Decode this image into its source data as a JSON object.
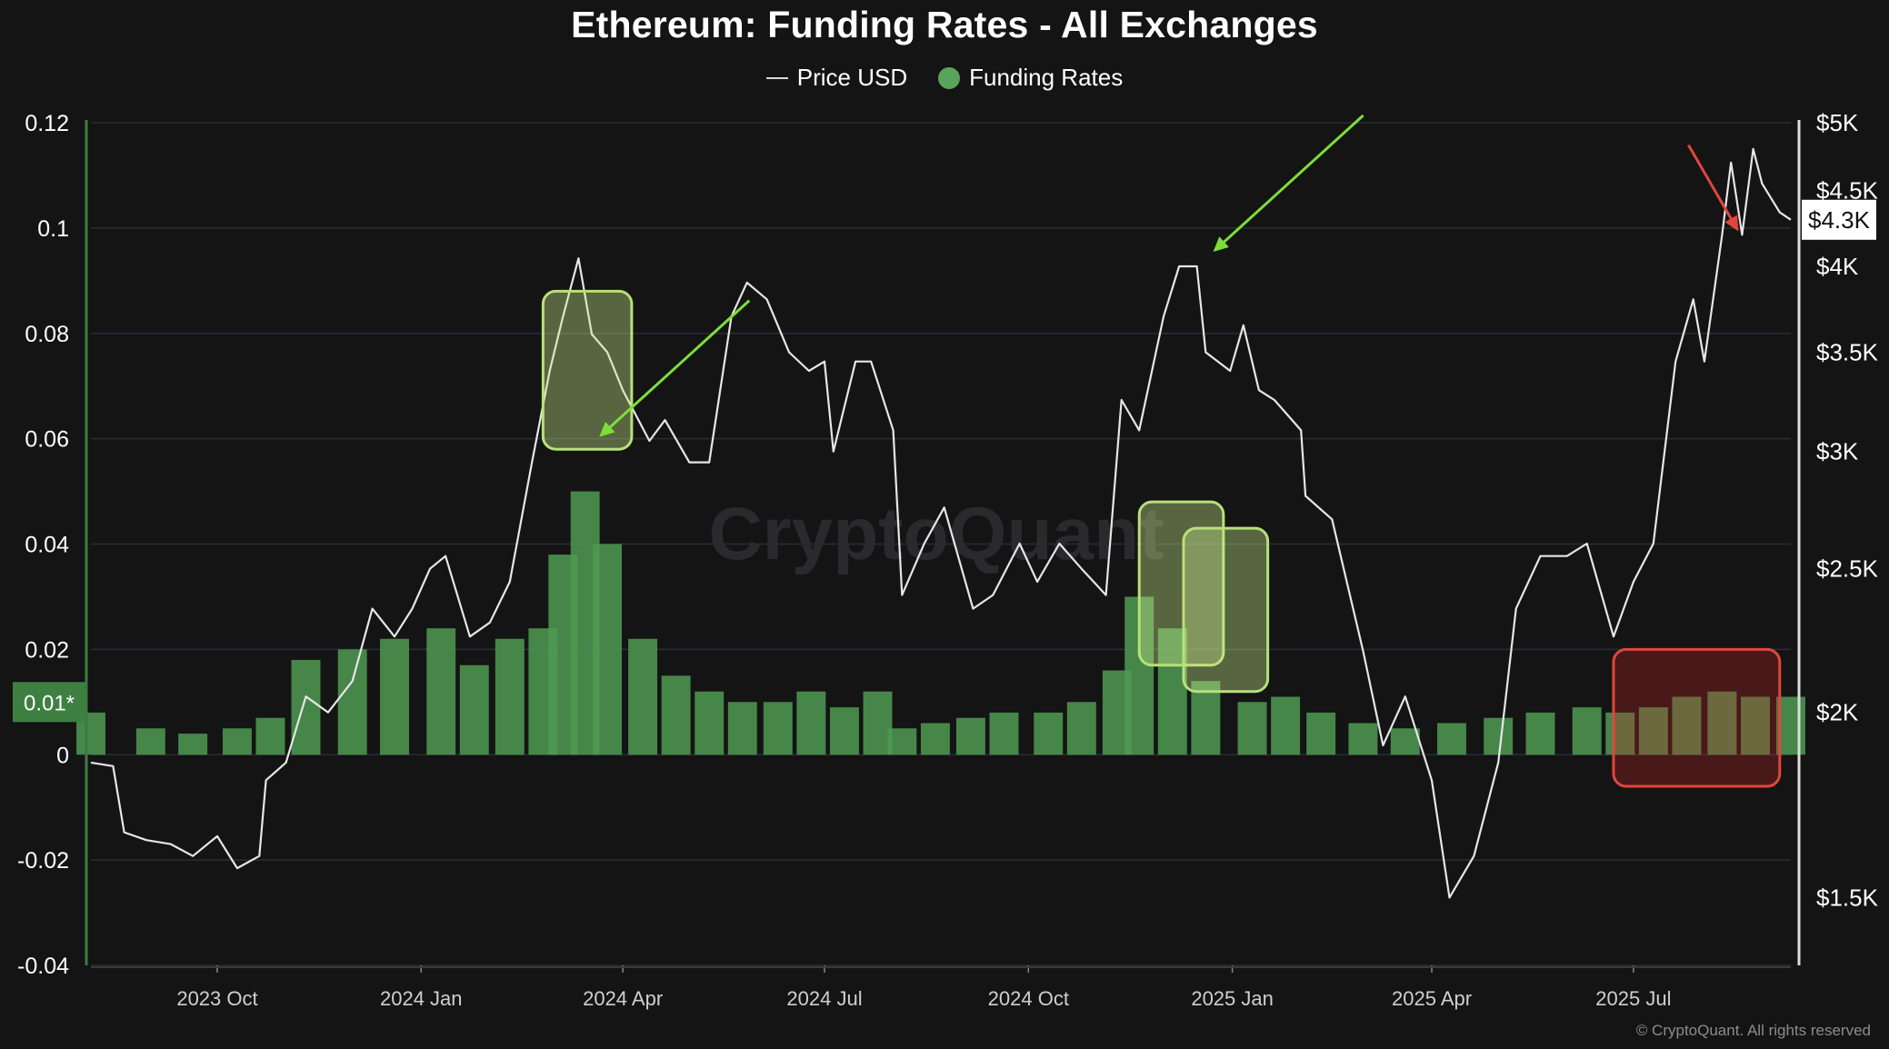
{
  "title": "Ethereum: Funding Rates - All Exchanges",
  "legend": {
    "price_label": "Price USD",
    "funding_label": "Funding Rates"
  },
  "watermark": "CryptoQuant",
  "credit": "© CryptoQuant. All rights reserved",
  "colors": {
    "background": "#141414",
    "price_line": "#e6e6e6",
    "funding_positive": "#4f9a52",
    "funding_negative": "#b3353c",
    "highlight_green": "#b8e07a",
    "highlight_red": "#e0463c",
    "arrow_green": "#7dde3a",
    "arrow_red": "#e0463c",
    "grid": "#2a2d38"
  },
  "chart_data": {
    "type": "bar+line",
    "title": "Ethereum: Funding Rates - All Exchanges",
    "x_ticks": [
      "2023 Oct",
      "2024 Jan",
      "2024 Apr",
      "2024 Jul",
      "2024 Oct",
      "2025 Jan",
      "2025 Apr",
      "2025 Jul"
    ],
    "x_range": [
      "2023-08-05",
      "2025-09-10"
    ],
    "left_axis": {
      "ticks": [
        "0.12",
        "0.1",
        "0.08",
        "0.06",
        "0.04",
        "0.02",
        "0",
        "-0.02",
        "-0.04"
      ],
      "ylim": [
        -0.04,
        0.12
      ]
    },
    "right_axis": {
      "ticks": [
        "$5K",
        "$4.5K",
        "$4K",
        "$3.5K",
        "$3K",
        "$2.5K",
        "$2K",
        "$1.5K"
      ],
      "scale": "log",
      "ylim": [
        1350,
        5000
      ]
    },
    "current_funding_label": "0.01*",
    "current_price_label": "$4.3K",
    "series": [
      {
        "name": "Price USD",
        "kind": "line",
        "dates": [
          "2023-08-05",
          "2023-08-15",
          "2023-08-20",
          "2023-08-30",
          "2023-09-10",
          "2023-09-20",
          "2023-10-01",
          "2023-10-10",
          "2023-10-20",
          "2023-10-23",
          "2023-11-01",
          "2023-11-10",
          "2023-11-20",
          "2023-12-01",
          "2023-12-10",
          "2023-12-20",
          "2023-12-28",
          "2024-01-05",
          "2024-01-12",
          "2024-01-23",
          "2024-02-01",
          "2024-02-10",
          "2024-02-20",
          "2024-02-28",
          "2024-03-05",
          "2024-03-12",
          "2024-03-18",
          "2024-03-25",
          "2024-04-01",
          "2024-04-13",
          "2024-04-20",
          "2024-05-01",
          "2024-05-10",
          "2024-05-20",
          "2024-05-27",
          "2024-06-05",
          "2024-06-15",
          "2024-06-24",
          "2024-07-01",
          "2024-07-05",
          "2024-07-15",
          "2024-07-22",
          "2024-08-01",
          "2024-08-05",
          "2024-08-15",
          "2024-08-24",
          "2024-09-06",
          "2024-09-15",
          "2024-09-27",
          "2024-10-05",
          "2024-10-15",
          "2024-10-25",
          "2024-11-05",
          "2024-11-12",
          "2024-11-20",
          "2024-12-01",
          "2024-12-08",
          "2024-12-16",
          "2024-12-20",
          "2024-12-31",
          "2025-01-06",
          "2025-01-13",
          "2025-01-20",
          "2025-02-01",
          "2025-02-03",
          "2025-02-15",
          "2025-03-01",
          "2025-03-10",
          "2025-03-20",
          "2025-04-01",
          "2025-04-09",
          "2025-04-20",
          "2025-05-01",
          "2025-05-09",
          "2025-05-20",
          "2025-06-01",
          "2025-06-10",
          "2025-06-22",
          "2025-07-01",
          "2025-07-10",
          "2025-07-20",
          "2025-07-28",
          "2025-08-02",
          "2025-08-10",
          "2025-08-14",
          "2025-08-19",
          "2025-08-24",
          "2025-08-28",
          "2025-09-05",
          "2025-09-10"
        ],
        "values": [
          1850,
          1840,
          1660,
          1640,
          1630,
          1600,
          1650,
          1570,
          1600,
          1800,
          1850,
          2050,
          2000,
          2100,
          2350,
          2250,
          2350,
          2500,
          2550,
          2250,
          2300,
          2450,
          2950,
          3400,
          3700,
          4050,
          3600,
          3500,
          3300,
          3050,
          3150,
          2950,
          2950,
          3700,
          3900,
          3800,
          3500,
          3400,
          3450,
          3000,
          3450,
          3450,
          3100,
          2400,
          2600,
          2750,
          2350,
          2400,
          2600,
          2450,
          2600,
          2500,
          2400,
          3250,
          3100,
          3700,
          4000,
          4000,
          3500,
          3400,
          3650,
          3300,
          3250,
          3100,
          2800,
          2700,
          2200,
          1900,
          2050,
          1800,
          1500,
          1600,
          1850,
          2350,
          2550,
          2550,
          2600,
          2250,
          2450,
          2600,
          3450,
          3800,
          3450,
          4200,
          4700,
          4200,
          4800,
          4550,
          4350,
          4300
        ]
      },
      {
        "name": "Funding Rates",
        "kind": "bar",
        "dates": [
          "2023-08-05",
          "2023-09-01",
          "2023-09-20",
          "2023-10-10",
          "2023-10-25",
          "2023-11-10",
          "2023-12-01",
          "2023-12-20",
          "2024-01-10",
          "2024-01-25",
          "2024-02-10",
          "2024-02-25",
          "2024-03-05",
          "2024-03-15",
          "2024-03-25",
          "2024-04-10",
          "2024-04-25",
          "2024-05-10",
          "2024-05-25",
          "2024-06-10",
          "2024-06-25",
          "2024-07-10",
          "2024-07-25",
          "2024-08-05",
          "2024-08-20",
          "2024-09-05",
          "2024-09-20",
          "2024-10-10",
          "2024-10-25",
          "2024-11-10",
          "2024-11-20",
          "2024-12-05",
          "2024-12-20",
          "2025-01-10",
          "2025-01-25",
          "2025-02-10",
          "2025-03-01",
          "2025-03-20",
          "2025-04-10",
          "2025-05-01",
          "2025-05-20",
          "2025-06-10",
          "2025-06-25",
          "2025-07-10",
          "2025-07-25",
          "2025-08-10",
          "2025-08-25",
          "2025-09-10"
        ],
        "values": [
          0.008,
          0.005,
          0.004,
          0.005,
          0.007,
          0.018,
          0.02,
          0.022,
          0.024,
          0.017,
          0.022,
          0.024,
          0.038,
          0.05,
          0.04,
          0.022,
          0.015,
          0.012,
          0.01,
          0.01,
          0.012,
          0.009,
          0.012,
          0.005,
          0.006,
          0.007,
          0.008,
          0.008,
          0.01,
          0.016,
          0.03,
          0.024,
          0.014,
          0.01,
          0.011,
          0.008,
          0.006,
          0.005,
          0.006,
          0.007,
          0.008,
          0.009,
          0.008,
          0.009,
          0.011,
          0.012,
          0.011,
          0.011
        ]
      }
    ],
    "annotations": [
      {
        "kind": "highlight",
        "color": "green",
        "from": "2024-02-25",
        "to": "2024-04-05",
        "funding_range": [
          0.058,
          0.088
        ]
      },
      {
        "kind": "highlight",
        "color": "green",
        "from": "2024-11-20",
        "to": "2024-12-28",
        "funding_range": [
          0.017,
          0.048
        ]
      },
      {
        "kind": "highlight",
        "color": "green",
        "from": "2024-12-10",
        "to": "2025-01-17",
        "funding_range": [
          0.012,
          0.043
        ]
      },
      {
        "kind": "highlight",
        "color": "red",
        "from": "2025-06-22",
        "to": "2025-09-05",
        "funding_range": [
          -0.006,
          0.02
        ]
      },
      {
        "kind": "arrow",
        "color": "green",
        "points_to": "2024-03-14"
      },
      {
        "kind": "arrow",
        "color": "green",
        "points_to": "2024-12-16"
      },
      {
        "kind": "arrow",
        "color": "red",
        "points_to": "2025-08-19"
      }
    ]
  }
}
